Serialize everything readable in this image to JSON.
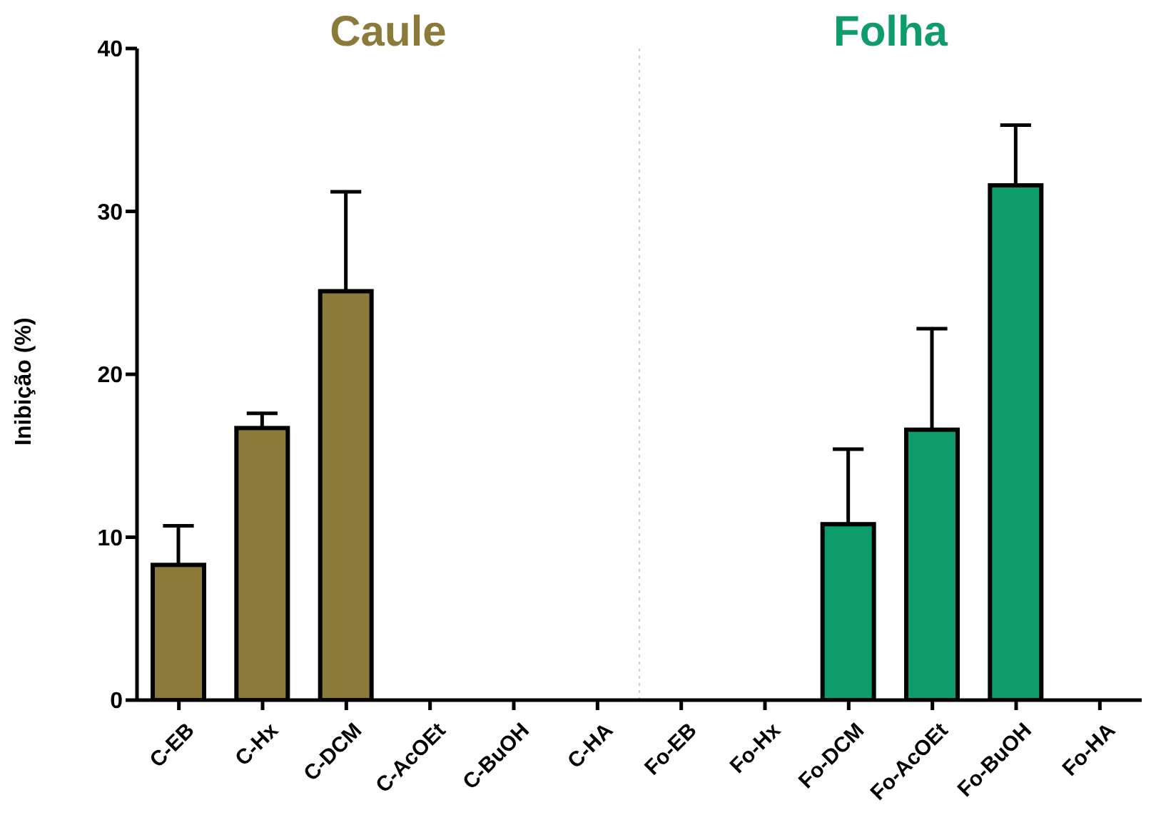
{
  "chart_data": {
    "type": "bar",
    "ylabel": "Inibição (%)",
    "categories": [
      "C-EB",
      "C-Hx",
      "C-DCM",
      "C-AcOEt",
      "C-BuOH",
      "C-HA",
      "Fo-EB",
      "Fo-Hx",
      "Fo-DCM",
      "Fo-AcOEt",
      "Fo-BuOH",
      "Fo-HA"
    ],
    "series": [
      {
        "name": "Caule",
        "color": "#8b7a3a",
        "values": [
          8.3,
          16.7,
          25.1,
          0,
          0,
          0,
          null,
          null,
          null,
          null,
          null,
          null
        ],
        "errors": [
          [
            8.3,
            10.7
          ],
          [
            16.7,
            17.6
          ],
          [
            25.1,
            31.2
          ],
          null,
          null,
          null,
          null,
          null,
          null,
          null,
          null,
          null
        ]
      },
      {
        "name": "Folha",
        "color": "#0e9c6a",
        "values": [
          null,
          null,
          null,
          null,
          null,
          null,
          0,
          0,
          10.8,
          16.6,
          31.6,
          0
        ],
        "errors": [
          null,
          null,
          null,
          null,
          null,
          null,
          null,
          null,
          [
            10.8,
            15.4
          ],
          [
            16.6,
            22.8
          ],
          [
            31.6,
            35.3
          ],
          null
        ]
      }
    ],
    "ylim": [
      0,
      40
    ],
    "yticks": [
      0,
      10,
      20,
      30,
      40
    ],
    "grid": false,
    "legend": false
  }
}
